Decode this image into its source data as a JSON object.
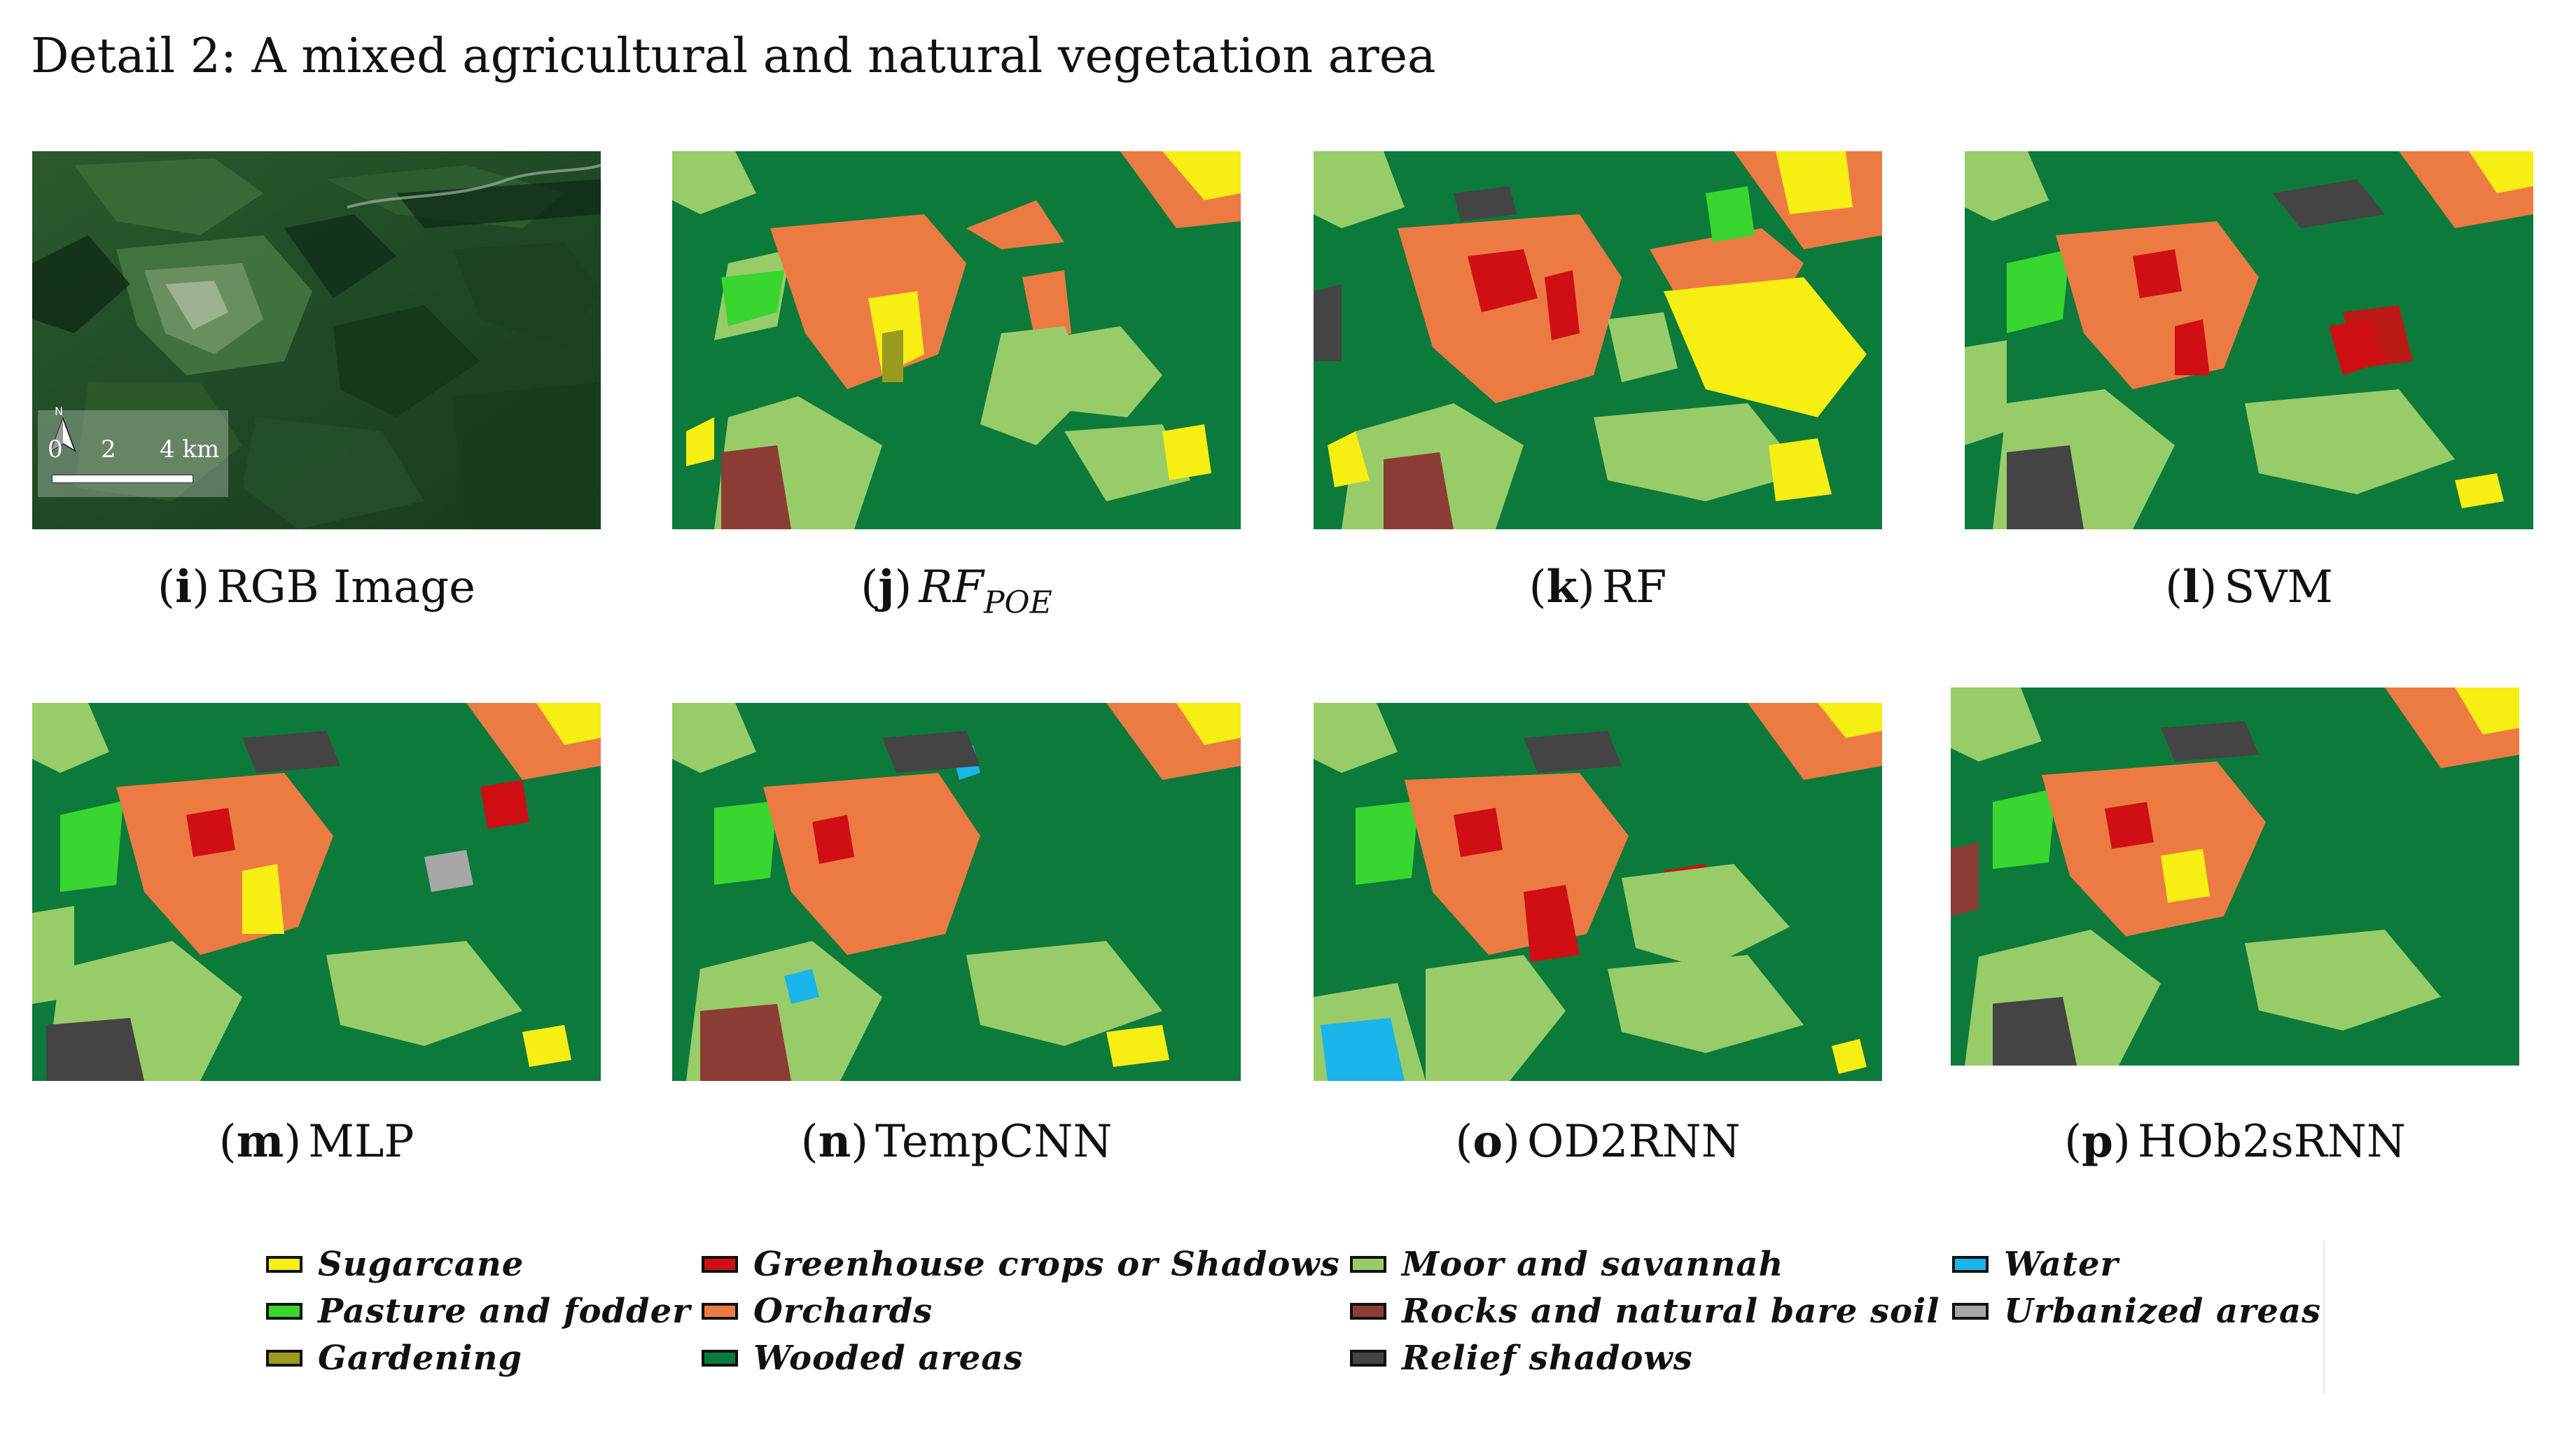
{
  "title": "Detail 2: A mixed agricultural and natural vegetation area",
  "colors": {
    "sugarcane": "#f7ee13",
    "pasture": "#38d62e",
    "gardening": "#9a9a1e",
    "greenhouse": "#cf0f14",
    "orchards": "#ec7b43",
    "wooded": "#0c7a3b",
    "moor": "#97cc69",
    "rocks": "#8b3c34",
    "relief": "#444444",
    "water": "#1ab5ea",
    "urban": "#a7a7a7"
  },
  "rgb_image": {
    "north_label": "N",
    "scale_labels": [
      "0",
      "2",
      "4 km"
    ]
  },
  "panels": [
    {
      "open": "(",
      "letter": "i",
      "close": ")",
      "name": "RGB Image"
    },
    {
      "open": "(",
      "letter": "j",
      "close": ")",
      "name_main": "RF",
      "name_sub": "POE"
    },
    {
      "open": "(",
      "letter": "k",
      "close": ")",
      "name": "RF"
    },
    {
      "open": "(",
      "letter": "l",
      "close": ")",
      "name": "SVM"
    },
    {
      "open": "(",
      "letter": "m",
      "close": ")",
      "name": "MLP"
    },
    {
      "open": "(",
      "letter": "n",
      "close": ")",
      "name": "TempCNN"
    },
    {
      "open": "(",
      "letter": "o",
      "close": ")",
      "name": "OD2RNN"
    },
    {
      "open": "(",
      "letter": "p",
      "close": ")",
      "name": "HOb2sRNN"
    }
  ],
  "legend": [
    [
      {
        "label": "Sugarcane",
        "color": "#f7ee13"
      },
      {
        "label": "Pasture and fodder",
        "color": "#38d62e"
      },
      {
        "label": "Gardening",
        "color": "#9a9a1e"
      }
    ],
    [
      {
        "label": "Greenhouse crops or Shadows",
        "color": "#cf0f14"
      },
      {
        "label": "Orchards",
        "color": "#ec7b43"
      },
      {
        "label": "Wooded areas",
        "color": "#0c7a3b"
      }
    ],
    [
      {
        "label": "Moor and savannah",
        "color": "#97cc69"
      },
      {
        "label": "Rocks and natural bare soil",
        "color": "#8b3c34"
      },
      {
        "label": "Relief shadows",
        "color": "#444444"
      }
    ],
    [
      {
        "label": "Water",
        "color": "#1ab5ea"
      },
      {
        "label": "Urbanized areas",
        "color": "#a7a7a7"
      }
    ]
  ]
}
